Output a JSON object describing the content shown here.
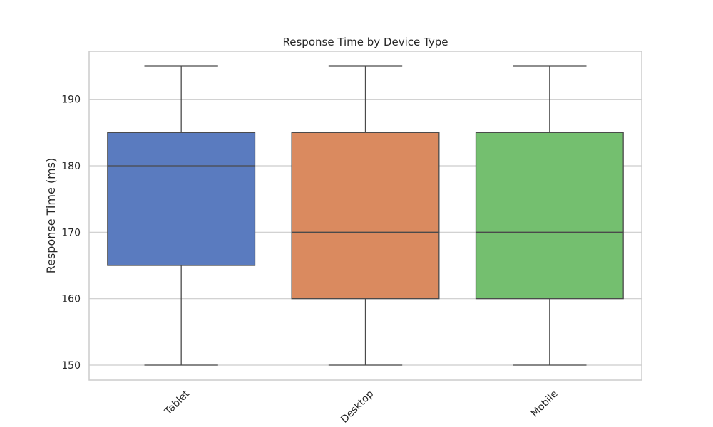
{
  "chart_data": {
    "type": "box",
    "title": "Response Time by Device Type",
    "xlabel": "",
    "ylabel": "Response Time (ms)",
    "ylim": [
      147.75,
      197.25
    ],
    "yticks": [
      150,
      160,
      170,
      180,
      190
    ],
    "grid": true,
    "xtick_rotation_deg": 45,
    "categories": [
      "Tablet",
      "Desktop",
      "Mobile"
    ],
    "boxes": [
      {
        "category": "Tablet",
        "min": 150,
        "q1": 165,
        "median": 180,
        "q3": 185,
        "max": 195,
        "color": "#5a7bbf"
      },
      {
        "category": "Desktop",
        "min": 150,
        "q1": 160,
        "median": 170,
        "q3": 185,
        "max": 195,
        "color": "#da8a5f"
      },
      {
        "category": "Mobile",
        "min": 150,
        "q1": 160,
        "median": 170,
        "q3": 185,
        "max": 195,
        "color": "#74bf6f"
      }
    ],
    "colors": {
      "grid": "#cccccc",
      "frame": "#cccccc",
      "box_edge": "#4a4a4a"
    }
  }
}
